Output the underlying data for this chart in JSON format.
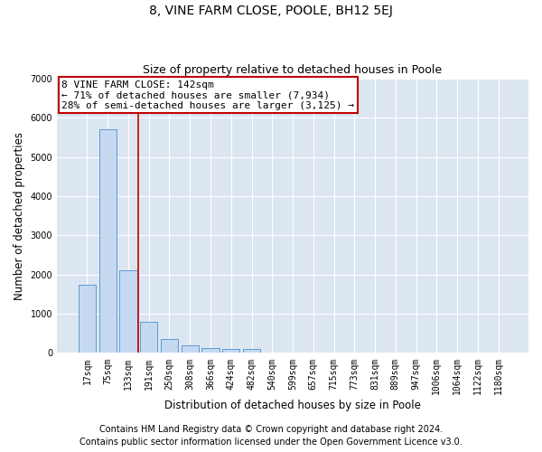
{
  "title": "8, VINE FARM CLOSE, POOLE, BH12 5EJ",
  "subtitle": "Size of property relative to detached houses in Poole",
  "xlabel": "Distribution of detached houses by size in Poole",
  "ylabel": "Number of detached properties",
  "bar_labels": [
    "17sqm",
    "75sqm",
    "133sqm",
    "191sqm",
    "250sqm",
    "308sqm",
    "366sqm",
    "424sqm",
    "482sqm",
    "540sqm",
    "599sqm",
    "657sqm",
    "715sqm",
    "773sqm",
    "831sqm",
    "889sqm",
    "947sqm",
    "1006sqm",
    "1064sqm",
    "1122sqm",
    "1180sqm"
  ],
  "bar_values": [
    1750,
    5700,
    2100,
    800,
    350,
    200,
    130,
    110,
    95,
    0,
    0,
    0,
    0,
    0,
    0,
    0,
    0,
    0,
    0,
    0,
    0
  ],
  "bar_color": "#c5d9f1",
  "bar_edge_color": "#5b9bd5",
  "vline_x": 2,
  "vline_color": "#c00000",
  "annotation_text": "8 VINE FARM CLOSE: 142sqm\n← 71% of detached houses are smaller (7,934)\n28% of semi-detached houses are larger (3,125) →",
  "annotation_box_color": "#c00000",
  "ylim": [
    0,
    7000
  ],
  "yticks": [
    0,
    1000,
    2000,
    3000,
    4000,
    5000,
    6000,
    7000
  ],
  "footer_line1": "Contains HM Land Registry data © Crown copyright and database right 2024.",
  "footer_line2": "Contains public sector information licensed under the Open Government Licence v3.0.",
  "plot_bg_color": "#dce6f1",
  "title_fontsize": 10,
  "subtitle_fontsize": 9,
  "axis_label_fontsize": 8.5,
  "tick_fontsize": 7,
  "footer_fontsize": 7,
  "annotation_fontsize": 8
}
